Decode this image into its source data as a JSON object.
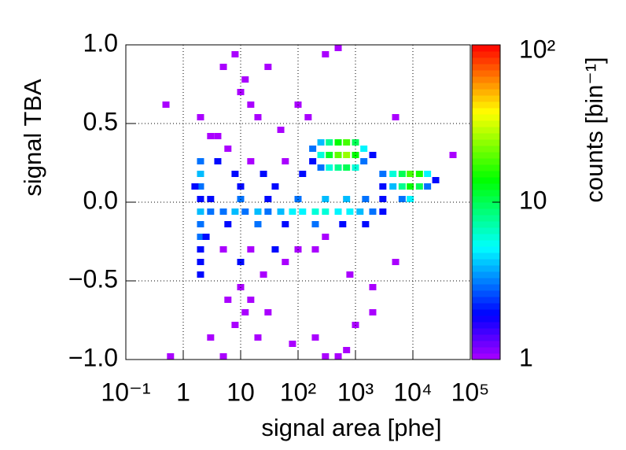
{
  "chart_data": {
    "type": "heatmap",
    "xlabel": "signal area [phe]",
    "ylabel": "signal TBA",
    "zlabel": "counts [bin⁻¹]",
    "xlog": true,
    "xlim": [
      0.1,
      100000
    ],
    "xticks": [
      {
        "value": 0.1,
        "label": "10⁻¹"
      },
      1,
      10,
      {
        "value": 100,
        "label": "10²"
      },
      {
        "value": 1000,
        "label": "10³"
      },
      {
        "value": 10000,
        "label": "10⁴"
      },
      {
        "value": 100000,
        "label": "10⁵"
      }
    ],
    "ylim": [
      -1,
      1
    ],
    "yticks": [
      {
        "value": -1,
        "label": "−1.0"
      },
      {
        "value": -0.5,
        "label": "−0.5"
      },
      {
        "value": 0,
        "label": "0.0"
      },
      0.5,
      {
        "value": 1,
        "label": "1.0"
      }
    ],
    "zlog": true,
    "zlim": [
      1,
      100
    ],
    "zticks": [
      1,
      10,
      {
        "value": 100,
        "label": "10²"
      }
    ],
    "colormap": "rainbow",
    "grid": true,
    "x": [
      250,
      250,
      250,
      350,
      350,
      350,
      500,
      500,
      500,
      700,
      700,
      700,
      1000,
      1000,
      1000,
      1400,
      1400,
      2000,
      180,
      180,
      3000,
      3000,
      4500,
      4500,
      6500,
      6500,
      9000,
      9000,
      9000,
      13000,
      13000,
      18000,
      18000,
      25000,
      6500,
      2,
      3,
      5,
      8,
      12,
      20,
      30,
      50,
      80,
      120,
      200,
      300,
      500,
      800,
      1200,
      2000,
      3000,
      3,
      10,
      30,
      100,
      300,
      700,
      1500,
      3000,
      2,
      6,
      20,
      60,
      200,
      600,
      1500,
      2,
      2,
      2,
      2,
      2,
      2,
      2,
      2,
      1.6,
      2.5,
      4,
      4,
      6,
      8,
      10,
      15,
      25,
      40,
      60,
      120,
      5,
      10,
      15,
      25,
      40,
      60,
      100,
      10,
      15,
      12,
      8,
      20,
      6,
      30,
      200,
      300,
      5,
      8,
      10,
      12,
      15,
      20,
      30,
      0.5,
      2,
      50,
      100,
      300,
      500,
      150,
      3,
      0.6,
      300,
      500,
      700,
      80,
      200,
      1000,
      2000,
      3,
      5,
      2000,
      5000,
      800,
      50000,
      5000
    ],
    "y": [
      0.38,
      0.3,
      0.22,
      0.38,
      0.3,
      0.22,
      0.38,
      0.3,
      0.22,
      0.38,
      0.3,
      0.22,
      0.38,
      0.3,
      0.22,
      0.34,
      0.26,
      0.3,
      0.34,
      0.26,
      0.18,
      0.1,
      0.18,
      0.1,
      0.18,
      0.1,
      0.18,
      0.1,
      0.02,
      0.18,
      0.1,
      0.18,
      0.1,
      0.14,
      0.02,
      -0.06,
      -0.06,
      -0.06,
      -0.06,
      -0.06,
      -0.06,
      -0.06,
      -0.06,
      -0.06,
      -0.06,
      -0.06,
      -0.06,
      -0.06,
      -0.06,
      -0.06,
      -0.06,
      -0.06,
      0.02,
      0.02,
      0.02,
      0.02,
      0.02,
      0.02,
      0.02,
      0.02,
      -0.14,
      -0.14,
      -0.14,
      -0.14,
      -0.14,
      -0.14,
      -0.14,
      0.26,
      0.18,
      0.1,
      0.02,
      -0.22,
      -0.3,
      -0.38,
      -0.46,
      0.1,
      -0.22,
      0.42,
      0.26,
      0.34,
      0.18,
      0.1,
      0.26,
      0.18,
      0.1,
      0.26,
      0.18,
      -0.3,
      -0.38,
      -0.3,
      -0.46,
      -0.3,
      -0.38,
      -0.3,
      -0.54,
      -0.62,
      -0.7,
      -0.78,
      -0.86,
      -0.62,
      -0.7,
      -0.3,
      -0.22,
      0.86,
      0.94,
      0.7,
      0.78,
      0.62,
      0.54,
      0.86,
      0.62,
      0.54,
      0.46,
      0.62,
      0.94,
      0.98,
      0.54,
      0.42,
      -0.98,
      -0.98,
      -0.98,
      -0.94,
      -0.9,
      -0.86,
      -0.78,
      -0.7,
      -0.86,
      -0.98,
      -0.54,
      -0.38,
      -0.46,
      0.3,
      0.54
    ],
    "values": [
      4,
      6,
      3,
      8,
      12,
      6,
      14,
      20,
      8,
      18,
      25,
      10,
      10,
      14,
      6,
      5,
      3,
      2,
      3,
      2,
      3,
      2,
      6,
      4,
      10,
      8,
      18,
      14,
      5,
      15,
      10,
      5,
      3,
      2,
      3,
      4,
      3,
      3,
      4,
      3,
      4,
      3,
      4,
      5,
      5,
      6,
      6,
      5,
      5,
      4,
      3,
      2,
      2,
      3,
      2,
      3,
      4,
      4,
      3,
      2,
      3,
      2,
      3,
      2,
      3,
      2,
      2,
      3,
      4,
      3,
      2,
      3,
      2,
      2,
      2,
      2,
      2,
      1,
      2,
      1,
      2,
      2,
      1,
      2,
      2,
      1,
      2,
      1,
      2,
      1,
      1,
      2,
      1,
      1,
      1,
      1,
      1,
      1,
      1,
      1,
      1,
      1,
      1,
      1,
      1,
      1,
      1,
      1,
      1,
      1,
      1,
      1,
      1,
      1,
      1,
      1,
      1,
      1,
      1,
      1,
      1,
      1,
      1,
      1,
      1,
      1,
      1,
      1,
      1,
      1,
      1,
      1,
      1
    ]
  }
}
